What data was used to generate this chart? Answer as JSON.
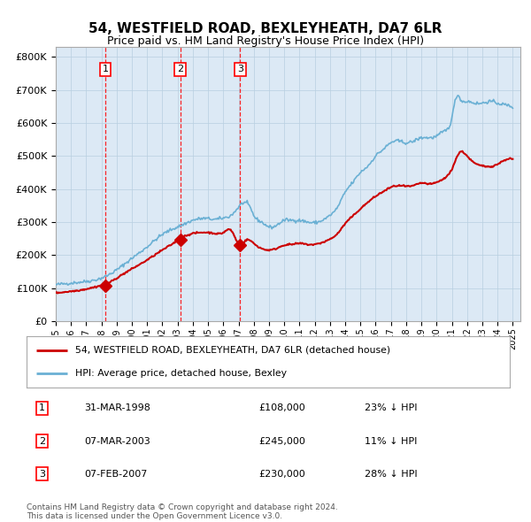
{
  "title": "54, WESTFIELD ROAD, BEXLEYHEATH, DA7 6LR",
  "subtitle": "Price paid vs. HM Land Registry's House Price Index (HPI)",
  "plot_bg_color": "#dce9f5",
  "hpi_line_color": "#6ab0d4",
  "price_line_color": "#cc0000",
  "grid_color": "#b8cfe0",
  "sale_dates": [
    1998.25,
    2003.18,
    2007.1
  ],
  "sale_prices": [
    108000,
    245000,
    230000
  ],
  "sale_labels": [
    "1",
    "2",
    "3"
  ],
  "sale_label_dates": [
    "31-MAR-1998",
    "07-MAR-2003",
    "07-FEB-2007"
  ],
  "sale_label_prices": [
    "£108,000",
    "£245,000",
    "£230,000"
  ],
  "sale_label_hpi": [
    "23% ↓ HPI",
    "11% ↓ HPI",
    "28% ↓ HPI"
  ],
  "ylabel_ticks": [
    0,
    100000,
    200000,
    300000,
    400000,
    500000,
    600000,
    700000,
    800000
  ],
  "ylabel_labels": [
    "£0",
    "£100K",
    "£200K",
    "£300K",
    "£400K",
    "£500K",
    "£600K",
    "£700K",
    "£800K"
  ],
  "xlim": [
    1995.0,
    2025.5
  ],
  "ylim": [
    0,
    830000
  ],
  "footnote": "Contains HM Land Registry data © Crown copyright and database right 2024.\nThis data is licensed under the Open Government Licence v3.0.",
  "legend_line1": "54, WESTFIELD ROAD, BEXLEYHEATH, DA7 6LR (detached house)",
  "legend_line2": "HPI: Average price, detached house, Bexley",
  "hpi_anchors_t": [
    1995.0,
    1996.0,
    1997.0,
    1998.0,
    1999.0,
    2000.0,
    2001.0,
    2002.0,
    2003.0,
    2003.5,
    2004.0,
    2004.5,
    2005.0,
    2005.5,
    2006.0,
    2006.5,
    2007.0,
    2007.3,
    2007.8,
    2008.0,
    2008.5,
    2009.0,
    2009.5,
    2010.0,
    2010.5,
    2011.0,
    2011.5,
    2012.0,
    2012.5,
    2013.0,
    2013.5,
    2014.0,
    2014.5,
    2015.0,
    2015.5,
    2016.0,
    2016.5,
    2017.0,
    2017.5,
    2018.0,
    2018.5,
    2019.0,
    2019.5,
    2020.0,
    2020.5,
    2021.0,
    2021.3,
    2021.6,
    2022.0,
    2022.5,
    2023.0,
    2023.5,
    2024.0,
    2024.5,
    2025.0
  ],
  "hpi_anchors_p": [
    110000,
    115000,
    120000,
    130000,
    155000,
    190000,
    225000,
    262000,
    285000,
    295000,
    305000,
    310000,
    310000,
    308000,
    312000,
    320000,
    345000,
    358000,
    340000,
    320000,
    300000,
    285000,
    290000,
    305000,
    305000,
    305000,
    300000,
    298000,
    305000,
    320000,
    345000,
    390000,
    420000,
    450000,
    470000,
    500000,
    520000,
    540000,
    545000,
    540000,
    545000,
    555000,
    555000,
    560000,
    575000,
    615000,
    680000,
    670000,
    665000,
    660000,
    660000,
    665000,
    660000,
    655000,
    648000
  ],
  "price_anchors_t": [
    1995.0,
    1996.0,
    1997.0,
    1998.0,
    1998.3,
    1999.0,
    2000.0,
    2001.0,
    2002.0,
    2003.0,
    2003.2,
    2003.5,
    2004.0,
    2004.5,
    2005.0,
    2005.5,
    2006.0,
    2006.5,
    2007.1,
    2007.5,
    2008.0,
    2008.5,
    2009.0,
    2009.5,
    2010.0,
    2010.5,
    2011.0,
    2011.5,
    2012.0,
    2012.5,
    2013.0,
    2013.5,
    2014.0,
    2014.5,
    2015.0,
    2015.5,
    2016.0,
    2016.5,
    2017.0,
    2017.5,
    2018.0,
    2018.5,
    2019.0,
    2019.5,
    2020.0,
    2020.5,
    2021.0,
    2021.5,
    2022.0,
    2022.5,
    2023.0,
    2023.5,
    2024.0,
    2024.5,
    2025.0
  ],
  "price_anchors_p": [
    85000,
    90000,
    97000,
    108000,
    112000,
    130000,
    158000,
    185000,
    215000,
    245000,
    252000,
    258000,
    265000,
    268000,
    268000,
    265000,
    268000,
    275000,
    230000,
    245000,
    235000,
    220000,
    215000,
    220000,
    230000,
    232000,
    235000,
    232000,
    232000,
    238000,
    248000,
    265000,
    295000,
    318000,
    340000,
    360000,
    378000,
    392000,
    405000,
    410000,
    408000,
    410000,
    418000,
    415000,
    420000,
    432000,
    460000,
    510000,
    500000,
    478000,
    470000,
    468000,
    475000,
    488000,
    490000
  ]
}
